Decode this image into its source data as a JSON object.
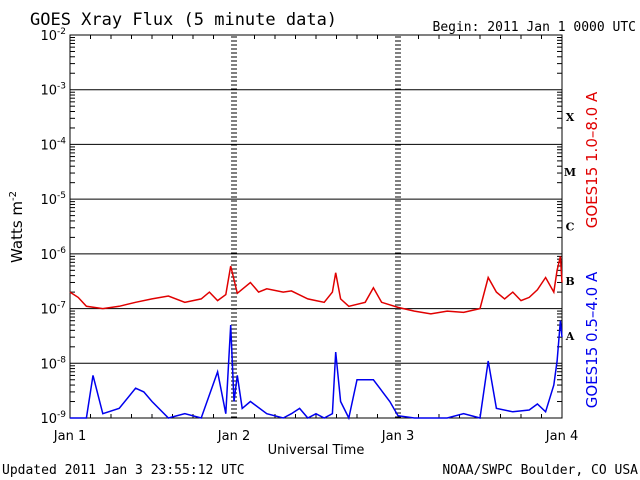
{
  "header": {
    "title": "GOES Xray Flux (5 minute data)",
    "begin": "Begin:  2011 Jan 1 0000 UTC"
  },
  "footer": {
    "updated": "Updated 2011 Jan  3 23:55:12 UTC",
    "credit": "NOAA/SWPC Boulder, CO USA"
  },
  "chart_data": {
    "type": "line",
    "title": "GOES Xray Flux (5 minute data)",
    "xlabel": "Universal Time",
    "ylabel": "Watts m",
    "ylabel_sup": "-2",
    "y_scale": "log",
    "ylim": [
      1e-09,
      0.01
    ],
    "y_ticks": [
      {
        "base": "10",
        "exp": "-2",
        "value": 0.01
      },
      {
        "base": "10",
        "exp": "-3",
        "value": 0.001
      },
      {
        "base": "10",
        "exp": "-4",
        "value": 0.0001
      },
      {
        "base": "10",
        "exp": "-5",
        "value": 1e-05
      },
      {
        "base": "10",
        "exp": "-6",
        "value": 1e-06
      },
      {
        "base": "10",
        "exp": "-7",
        "value": 1e-07
      },
      {
        "base": "10",
        "exp": "-8",
        "value": 1e-08
      },
      {
        "base": "10",
        "exp": "-9",
        "value": 1e-09
      }
    ],
    "x_ticks": [
      {
        "label": "Jan 1",
        "day": 0
      },
      {
        "label": "Jan 2",
        "day": 1
      },
      {
        "label": "Jan 3",
        "day": 2
      },
      {
        "label": "Jan 4",
        "day": 3
      }
    ],
    "flare_classes": [
      {
        "label": "X",
        "value": 0.0001
      },
      {
        "label": "M",
        "value": 1e-05
      },
      {
        "label": "C",
        "value": 1e-06
      },
      {
        "label": "B",
        "value": 1e-07
      },
      {
        "label": "A",
        "value": 1e-08
      }
    ],
    "grid": "horizontal lines at each decade",
    "series": [
      {
        "name": "GOES15 1.0–8.0 A",
        "color": "#e00000",
        "points": [
          [
            0,
            2e-07
          ],
          [
            0.05,
            1.6e-07
          ],
          [
            0.1,
            1.1e-07
          ],
          [
            0.2,
            1e-07
          ],
          [
            0.3,
            1.1e-07
          ],
          [
            0.4,
            1.3e-07
          ],
          [
            0.5,
            1.5e-07
          ],
          [
            0.6,
            1.7e-07
          ],
          [
            0.7,
            1.3e-07
          ],
          [
            0.8,
            1.5e-07
          ],
          [
            0.85,
            2e-07
          ],
          [
            0.9,
            1.4e-07
          ],
          [
            0.95,
            1.8e-07
          ],
          [
            0.98,
            6e-07
          ],
          [
            1.02,
            1.9e-07
          ],
          [
            1.1,
            3e-07
          ],
          [
            1.15,
            2e-07
          ],
          [
            1.2,
            2.3e-07
          ],
          [
            1.3,
            2e-07
          ],
          [
            1.35,
            2.1e-07
          ],
          [
            1.45,
            1.5e-07
          ],
          [
            1.5,
            1.4e-07
          ],
          [
            1.55,
            1.3e-07
          ],
          [
            1.6,
            2e-07
          ],
          [
            1.62,
            4.5e-07
          ],
          [
            1.65,
            1.5e-07
          ],
          [
            1.7,
            1.1e-07
          ],
          [
            1.8,
            1.3e-07
          ],
          [
            1.85,
            2.4e-07
          ],
          [
            1.9,
            1.3e-07
          ],
          [
            2.0,
            1.05e-07
          ],
          [
            2.1,
            9e-08
          ],
          [
            2.2,
            8e-08
          ],
          [
            2.3,
            9e-08
          ],
          [
            2.4,
            8.5e-08
          ],
          [
            2.5,
            1e-07
          ],
          [
            2.55,
            3.7e-07
          ],
          [
            2.6,
            2e-07
          ],
          [
            2.65,
            1.5e-07
          ],
          [
            2.7,
            2e-07
          ],
          [
            2.75,
            1.4e-07
          ],
          [
            2.8,
            1.6e-07
          ],
          [
            2.85,
            2.2e-07
          ],
          [
            2.9,
            3.7e-07
          ],
          [
            2.95,
            2e-07
          ],
          [
            2.97,
            5e-07
          ],
          [
            2.99,
            9e-07
          ],
          [
            3.0,
            3e-07
          ]
        ]
      },
      {
        "name": "GOES15 0.5–4.0 A",
        "color": "#0000ee",
        "points": [
          [
            0,
            1e-09
          ],
          [
            0.1,
            1e-09
          ],
          [
            0.14,
            6e-09
          ],
          [
            0.2,
            1.2e-09
          ],
          [
            0.3,
            1.5e-09
          ],
          [
            0.4,
            3.5e-09
          ],
          [
            0.45,
            3e-09
          ],
          [
            0.5,
            2e-09
          ],
          [
            0.6,
            1e-09
          ],
          [
            0.7,
            1.2e-09
          ],
          [
            0.8,
            1e-09
          ],
          [
            0.9,
            7e-09
          ],
          [
            0.95,
            1.2e-09
          ],
          [
            0.98,
            5e-08
          ],
          [
            1.0,
            2e-09
          ],
          [
            1.02,
            6e-09
          ],
          [
            1.05,
            1.5e-09
          ],
          [
            1.1,
            2e-09
          ],
          [
            1.2,
            1.2e-09
          ],
          [
            1.3,
            1e-09
          ],
          [
            1.35,
            1.2e-09
          ],
          [
            1.4,
            1.5e-09
          ],
          [
            1.45,
            1e-09
          ],
          [
            1.5,
            1.2e-09
          ],
          [
            1.55,
            1e-09
          ],
          [
            1.6,
            1.2e-09
          ],
          [
            1.62,
            1.6e-08
          ],
          [
            1.65,
            2e-09
          ],
          [
            1.7,
            1e-09
          ],
          [
            1.75,
            5e-09
          ],
          [
            1.85,
            5e-09
          ],
          [
            1.95,
            2e-09
          ],
          [
            2.0,
            1.1e-09
          ],
          [
            2.1,
            1e-09
          ],
          [
            2.2,
            1e-09
          ],
          [
            2.3,
            1e-09
          ],
          [
            2.4,
            1.2e-09
          ],
          [
            2.5,
            1e-09
          ],
          [
            2.55,
            1.1e-08
          ],
          [
            2.6,
            1.5e-09
          ],
          [
            2.7,
            1.3e-09
          ],
          [
            2.8,
            1.4e-09
          ],
          [
            2.85,
            1.8e-09
          ],
          [
            2.9,
            1.3e-09
          ],
          [
            2.95,
            4e-09
          ],
          [
            2.97,
            1.1e-08
          ],
          [
            2.99,
            6e-08
          ],
          [
            3.0,
            3e-08
          ]
        ]
      }
    ]
  }
}
